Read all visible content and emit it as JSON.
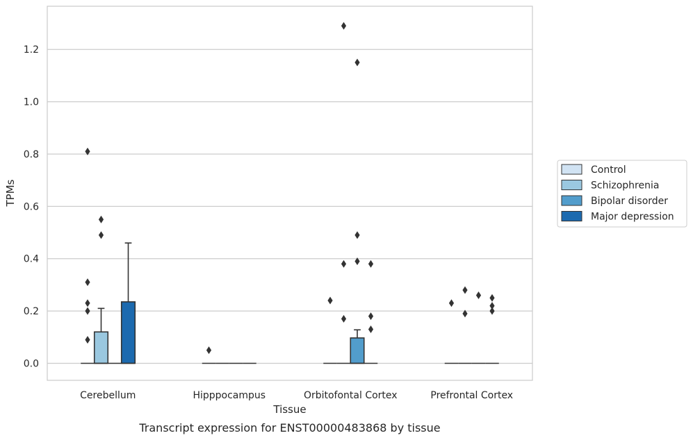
{
  "chart_data": {
    "type": "box",
    "caption": "Transcript expression for ENST00000483868 by tissue",
    "xlabel": "Tissue",
    "ylabel": "TPMs",
    "ylim": [
      -0.065,
      1.365
    ],
    "yticks": [
      0.0,
      0.2,
      0.4,
      0.6,
      0.8,
      1.0,
      1.2
    ],
    "ytick_labels": [
      "0.0",
      "0.2",
      "0.4",
      "0.6",
      "0.8",
      "1.0",
      "1.2"
    ],
    "grid": true,
    "legend_position": "right",
    "categories": [
      "Cerebellum",
      "Hipppocampus",
      "Orbitofontal Cortex",
      "Prefrontal Cortex"
    ],
    "series": [
      {
        "name": "Control",
        "color": "#d1e3f3"
      },
      {
        "name": "Schizophrenia",
        "color": "#9ac8e0"
      },
      {
        "name": "Bipolar disorder",
        "color": "#529dcc"
      },
      {
        "name": "Major depression",
        "color": "#1c6aaf"
      }
    ],
    "boxes": [
      [
        {
          "q1": 0,
          "median": 0,
          "q3": 0,
          "whislo": 0,
          "whishi": 0,
          "fliers": [
            0.09,
            0.2,
            0.23,
            0.31,
            0.81
          ]
        },
        {
          "q1": 0,
          "median": 0,
          "q3": 0.12,
          "whislo": 0,
          "whishi": 0.21,
          "fliers": [
            0.49,
            0.55
          ]
        },
        {
          "q1": 0,
          "median": 0,
          "q3": 0,
          "whislo": 0,
          "whishi": 0,
          "fliers": []
        },
        {
          "q1": 0,
          "median": 0,
          "q3": 0.235,
          "whislo": 0,
          "whishi": 0.46,
          "fliers": []
        }
      ],
      [
        {
          "q1": 0,
          "median": 0,
          "q3": 0,
          "whislo": 0,
          "whishi": 0,
          "fliers": [
            0.05
          ]
        },
        {
          "q1": 0,
          "median": 0,
          "q3": 0,
          "whislo": 0,
          "whishi": 0,
          "fliers": []
        },
        {
          "q1": 0,
          "median": 0,
          "q3": 0,
          "whislo": 0,
          "whishi": 0,
          "fliers": []
        },
        {
          "q1": 0,
          "median": 0,
          "q3": 0,
          "whislo": 0,
          "whishi": 0,
          "fliers": []
        }
      ],
      [
        {
          "q1": 0,
          "median": 0,
          "q3": 0,
          "whislo": 0,
          "whishi": 0,
          "fliers": [
            0.24
          ]
        },
        {
          "q1": 0,
          "median": 0,
          "q3": 0,
          "whislo": 0,
          "whishi": 0,
          "fliers": [
            0.17,
            0.38,
            1.29
          ]
        },
        {
          "q1": 0,
          "median": 0,
          "q3": 0.097,
          "whislo": 0,
          "whishi": 0.128,
          "fliers": [
            1.15,
            0.49,
            0.39
          ]
        },
        {
          "q1": 0,
          "median": 0,
          "q3": 0,
          "whislo": 0,
          "whishi": 0,
          "fliers": [
            0.38,
            0.18,
            0.13
          ]
        }
      ],
      [
        {
          "q1": 0,
          "median": 0,
          "q3": 0,
          "whislo": 0,
          "whishi": 0,
          "fliers": [
            0.23
          ]
        },
        {
          "q1": 0,
          "median": 0,
          "q3": 0,
          "whislo": 0,
          "whishi": 0,
          "fliers": [
            0.19,
            0.28
          ]
        },
        {
          "q1": 0,
          "median": 0,
          "q3": 0,
          "whislo": 0,
          "whishi": 0,
          "fliers": [
            0.26
          ]
        },
        {
          "q1": 0,
          "median": 0,
          "q3": 0,
          "whislo": 0,
          "whishi": 0,
          "fliers": [
            0.25,
            0.22,
            0.2
          ]
        }
      ]
    ]
  }
}
